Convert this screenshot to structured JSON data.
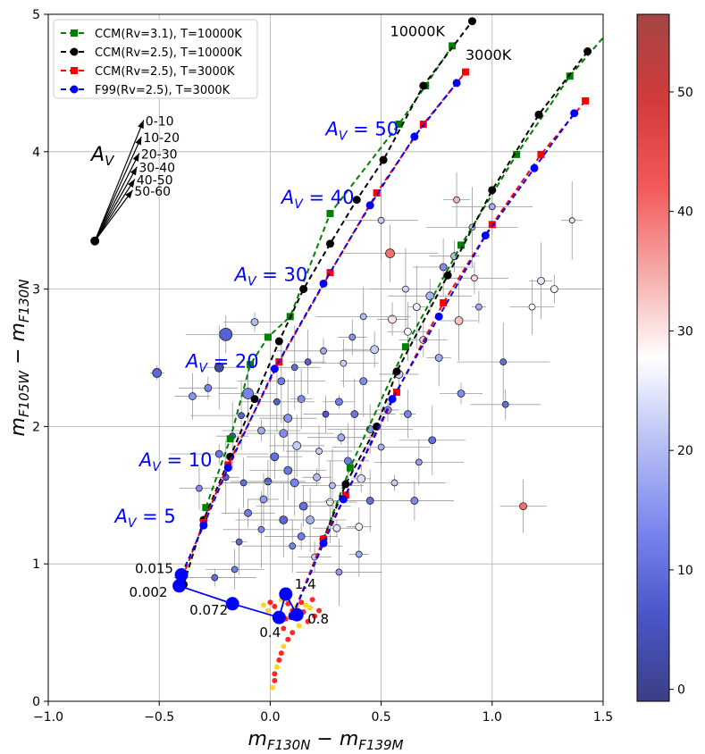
{
  "chart_data": {
    "type": "scatter",
    "title": "",
    "xlabel": "m_F130N − m_F139M",
    "xlabel_parts": {
      "base_x": "m",
      "sub_x": "F130N",
      "sep": " − ",
      "base_x2": "m",
      "sub_x2": "F139M"
    },
    "ylabel_parts": {
      "base_y": "m",
      "sub_y": "F105W",
      "sep": " − ",
      "base_y2": "m",
      "sub_y2": "F130N"
    },
    "xlim": [
      -1.0,
      1.5
    ],
    "ylim": [
      0,
      5
    ],
    "x_ticks": [
      -1.0,
      -0.5,
      0.0,
      0.5,
      1.0,
      1.5
    ],
    "x_tick_labels": [
      "−1.0",
      "−0.5",
      "0.0",
      "0.5",
      "1.0",
      "1.5"
    ],
    "y_ticks": [
      0,
      1,
      2,
      3,
      4,
      5
    ],
    "y_tick_labels": [
      "0",
      "1",
      "2",
      "3",
      "4",
      "5"
    ],
    "grid": true,
    "legend_position": "top-left",
    "colorbar": {
      "range": [
        -1,
        56.5
      ],
      "ticks": [
        0,
        10,
        20,
        30,
        40,
        50
      ],
      "tick_labels": [
        "0",
        "10",
        "20",
        "30",
        "40",
        "50"
      ],
      "colors": [
        "#3b3f85",
        "#4a55c8",
        "#7a86ee",
        "#b7bff4",
        "#ffffff",
        "#f5a9a9",
        "#f25858",
        "#d23b3b",
        "#a44545"
      ]
    },
    "series": [
      {
        "name": "CCM(Rv=3.1), T=10000K",
        "color": "#008000",
        "marker": "square",
        "left_branch": [
          [
            -0.29,
            1.41
          ],
          [
            -0.18,
            1.91
          ],
          [
            -0.09,
            2.45
          ],
          [
            -0.01,
            2.65
          ],
          [
            0.09,
            2.8
          ],
          [
            0.27,
            3.55
          ],
          [
            0.58,
            4.2
          ],
          [
            0.7,
            4.48
          ],
          [
            0.82,
            4.77
          ]
        ],
        "right_branch": [
          [
            0.24,
            1.18
          ],
          [
            0.36,
            1.7
          ],
          [
            0.61,
            2.58
          ],
          [
            0.86,
            3.32
          ],
          [
            1.11,
            3.98
          ],
          [
            1.35,
            4.55
          ]
        ],
        "extension": [
          [
            1.35,
            4.55
          ],
          [
            1.5,
            4.83
          ]
        ]
      },
      {
        "name": "CCM(Rv=2.5), T=10000K",
        "color": "#000000",
        "marker": "circle",
        "left_branch": [
          [
            -0.39,
            0.85
          ],
          [
            -0.3,
            1.32
          ],
          [
            -0.18,
            1.78
          ],
          [
            -0.07,
            2.2
          ],
          [
            0.04,
            2.62
          ],
          [
            0.15,
            3.0
          ],
          [
            0.27,
            3.33
          ],
          [
            0.39,
            3.65
          ],
          [
            0.51,
            3.94
          ],
          [
            0.69,
            4.48
          ],
          [
            0.91,
            4.95
          ]
        ],
        "right_branch": [
          [
            0.1,
            0.62
          ],
          [
            0.24,
            1.18
          ],
          [
            0.34,
            1.58
          ],
          [
            0.48,
            2.0
          ],
          [
            0.57,
            2.4
          ],
          [
            0.8,
            3.1
          ],
          [
            1.0,
            3.72
          ],
          [
            1.21,
            4.27
          ],
          [
            1.43,
            4.73
          ]
        ]
      },
      {
        "name": "CCM(Rv=2.5), T=3000K",
        "color": "#ff0000",
        "marker": "square",
        "left_branch": [
          [
            -0.41,
            0.84
          ],
          [
            -0.3,
            1.3
          ],
          [
            -0.19,
            1.72
          ],
          [
            0.04,
            2.47
          ],
          [
            0.27,
            3.12
          ],
          [
            0.48,
            3.7
          ],
          [
            0.69,
            4.2
          ],
          [
            0.88,
            4.58
          ]
        ],
        "right_branch": [
          [
            0.1,
            0.62
          ],
          [
            0.24,
            1.18
          ],
          [
            0.34,
            1.5
          ],
          [
            0.57,
            2.25
          ],
          [
            0.78,
            2.9
          ],
          [
            1.0,
            3.47
          ],
          [
            1.22,
            3.98
          ],
          [
            1.42,
            4.37
          ]
        ]
      },
      {
        "name": "F99(Rv=2.5), T=3000K",
        "color": "#0000ff",
        "marker": "circle",
        "left_branch": [
          [
            -0.4,
            0.92
          ],
          [
            -0.3,
            1.28
          ],
          [
            -0.19,
            1.7
          ],
          [
            0.02,
            2.42
          ],
          [
            0.24,
            3.04
          ],
          [
            0.45,
            3.61
          ],
          [
            0.65,
            4.11
          ],
          [
            0.84,
            4.5
          ]
        ],
        "right_branch": [
          [
            0.1,
            0.62
          ],
          [
            0.24,
            1.15
          ],
          [
            0.33,
            1.47
          ],
          [
            0.55,
            2.2
          ],
          [
            0.76,
            2.8
          ],
          [
            0.97,
            3.39
          ],
          [
            1.19,
            3.88
          ],
          [
            1.37,
            4.28
          ]
        ]
      }
    ],
    "isochrone": {
      "color": "#0000ff",
      "points": [
        [
          -0.4,
          0.92
        ],
        [
          -0.41,
          0.84
        ],
        [
          -0.17,
          0.71
        ],
        [
          0.04,
          0.61
        ],
        [
          0.07,
          0.78
        ],
        [
          0.12,
          0.63
        ]
      ],
      "labels": [
        "0.015",
        "0.002",
        "0.072",
        "0.4",
        "1.4",
        "0.8"
      ]
    },
    "reddening_vector": {
      "symbol": "A_V",
      "origin": [
        -0.79,
        3.35
      ],
      "label_position": "left",
      "arrows": [
        {
          "label": "0-10",
          "tip": [
            -0.57,
            4.23
          ]
        },
        {
          "label": "10-20",
          "tip": [
            -0.58,
            4.11
          ]
        },
        {
          "label": "20-30",
          "tip": [
            -0.59,
            3.99
          ]
        },
        {
          "label": "30-40",
          "tip": [
            -0.6,
            3.89
          ]
        },
        {
          "label": "40-50",
          "tip": [
            -0.61,
            3.8
          ]
        },
        {
          "label": "50-60",
          "tip": [
            -0.62,
            3.72
          ]
        }
      ]
    },
    "av_annotations": [
      {
        "prefix": "A",
        "sub": "V",
        "eq": " = 5",
        "x": -0.7,
        "y": 1.3
      },
      {
        "prefix": "A",
        "sub": "V",
        "eq": " = 10",
        "x": -0.59,
        "y": 1.71
      },
      {
        "prefix": "A",
        "sub": "V",
        "eq": " = 20",
        "x": -0.38,
        "y": 2.43
      },
      {
        "prefix": "A",
        "sub": "V",
        "eq": " = 30",
        "x": -0.16,
        "y": 3.06
      },
      {
        "prefix": "A",
        "sub": "V",
        "eq": " = 40",
        "x": 0.05,
        "y": 3.62
      },
      {
        "prefix": "A",
        "sub": "V",
        "eq": " = 50",
        "x": 0.25,
        "y": 4.12
      }
    ],
    "temperature_labels": [
      {
        "text": "10000K",
        "x": 0.54,
        "y": 4.84
      },
      {
        "text": "3000K",
        "x": 0.88,
        "y": 4.67
      }
    ],
    "sources": [
      [
        -0.51,
        2.39,
        9,
        10
      ],
      [
        -0.2,
        2.67,
        8,
        14
      ],
      [
        -0.1,
        2.24,
        13,
        12
      ],
      [
        -0.23,
        2.43,
        3,
        10
      ],
      [
        0.06,
        1.95,
        14,
        9
      ],
      [
        0.08,
        1.68,
        11,
        9
      ],
      [
        0.27,
        1.45,
        27,
        8
      ],
      [
        0.55,
        2.78,
        30,
        9
      ],
      [
        0.54,
        3.26,
        40,
        10
      ],
      [
        0.5,
        3.5,
        22,
        7
      ],
      [
        0.83,
        3.24,
        20,
        8
      ],
      [
        0.84,
        3.65,
        34,
        7
      ],
      [
        1.05,
        2.47,
        10,
        7
      ],
      [
        1.06,
        2.16,
        10,
        7
      ],
      [
        1.14,
        1.42,
        40,
        8
      ],
      [
        1.22,
        3.06,
        25,
        8
      ],
      [
        1.28,
        3.0,
        27,
        8
      ],
      [
        0.22,
        1.82,
        22,
        7
      ],
      [
        0.35,
        1.75,
        12,
        8
      ],
      [
        0.41,
        1.62,
        24,
        9
      ],
      [
        0.45,
        1.98,
        16,
        8
      ],
      [
        0.28,
        1.57,
        20,
        7
      ],
      [
        0.58,
        2.38,
        23,
        9
      ],
      [
        0.62,
        2.09,
        13,
        8
      ],
      [
        0.38,
        2.09,
        11,
        8
      ],
      [
        -0.28,
        2.28,
        13,
        8
      ],
      [
        -0.35,
        2.22,
        15,
        8
      ],
      [
        -0.13,
        2.08,
        8,
        7
      ],
      [
        -0.04,
        1.97,
        18,
        8
      ],
      [
        0.02,
        1.78,
        10,
        9
      ],
      [
        -0.17,
        1.93,
        6,
        7
      ],
      [
        -0.23,
        1.8,
        11,
        8
      ],
      [
        -0.01,
        1.6,
        8,
        8
      ],
      [
        0.11,
        1.59,
        13,
        9
      ],
      [
        0.21,
        1.63,
        20,
        8
      ],
      [
        0.15,
        1.42,
        10,
        9
      ],
      [
        0.18,
        1.32,
        19,
        9
      ],
      [
        0.3,
        1.26,
        25,
        8
      ],
      [
        0.4,
        1.27,
        26,
        8
      ],
      [
        0.45,
        1.46,
        10,
        8
      ],
      [
        0.32,
        1.92,
        18,
        8
      ],
      [
        0.25,
        2.09,
        7,
        7
      ],
      [
        0.14,
        2.2,
        14,
        8
      ],
      [
        0.05,
        2.33,
        12,
        8
      ],
      [
        0.47,
        2.56,
        22,
        9
      ],
      [
        0.62,
        2.69,
        28,
        8
      ],
      [
        0.66,
        2.87,
        26,
        8
      ],
      [
        0.72,
        2.95,
        19,
        9
      ],
      [
        0.78,
        3.16,
        14,
        8
      ],
      [
        0.85,
        2.77,
        33,
        9
      ],
      [
        0.94,
        2.87,
        18,
        7
      ],
      [
        1.0,
        3.6,
        18,
        7
      ],
      [
        0.08,
        2.06,
        15,
        9
      ],
      [
        0.2,
        1.05,
        22,
        7
      ],
      [
        0.1,
        1.13,
        13,
        7
      ],
      [
        -0.04,
        1.25,
        14,
        7
      ],
      [
        -0.1,
        1.37,
        12,
        8
      ],
      [
        -0.03,
        1.47,
        16,
        8
      ],
      [
        0.06,
        1.32,
        9,
        9
      ],
      [
        0.14,
        1.2,
        12,
        8
      ],
      [
        -0.12,
        1.59,
        10,
        7
      ],
      [
        -0.2,
        1.63,
        8,
        7
      ],
      [
        0.24,
        2.55,
        18,
        7
      ],
      [
        0.33,
        2.46,
        22,
        7
      ],
      [
        0.42,
        2.33,
        14,
        8
      ],
      [
        0.53,
        2.12,
        16,
        8
      ],
      [
        0.67,
        1.74,
        16,
        7
      ],
      [
        0.73,
        1.9,
        10,
        8
      ],
      [
        0.86,
        2.24,
        14,
        8
      ],
      [
        0.4,
        1.07,
        18,
        7
      ],
      [
        0.31,
        0.94,
        16,
        7
      ],
      [
        -0.07,
        2.76,
        20,
        8
      ],
      [
        -0.32,
        1.55,
        14,
        7
      ],
      [
        -0.14,
        1.16,
        9,
        7
      ],
      [
        -0.25,
        0.9,
        10,
        7
      ],
      [
        -0.16,
        0.96,
        12,
        7
      ],
      [
        0.17,
        2.47,
        8,
        7
      ],
      [
        0.56,
        1.59,
        22,
        7
      ],
      [
        0.65,
        1.46,
        14,
        8
      ],
      [
        0.12,
        1.86,
        22,
        9
      ],
      [
        0.31,
        2.18,
        12,
        8
      ],
      [
        0.5,
        1.85,
        18,
        7
      ],
      [
        0.03,
        2.18,
        8,
        7
      ],
      [
        0.11,
        2.43,
        10,
        7
      ],
      [
        0.37,
        2.65,
        15,
        7
      ],
      [
        0.42,
        2.8,
        20,
        7
      ],
      [
        0.61,
        3.0,
        23,
        7
      ],
      [
        0.69,
        2.63,
        24,
        8
      ],
      [
        0.76,
        2.5,
        18,
        8
      ],
      [
        0.91,
        3.45,
        20,
        7
      ],
      [
        0.92,
        3.08,
        31,
        7
      ],
      [
        1.18,
        2.87,
        28,
        7
      ],
      [
        1.36,
        3.5,
        30,
        6
      ]
    ],
    "pms_cloud": {
      "color": "#ff0000",
      "points": [
        [
          -0.03,
          0.7
        ],
        [
          0.0,
          0.72
        ],
        [
          0.02,
          0.69
        ],
        [
          0.05,
          0.74
        ],
        [
          0.08,
          0.71
        ],
        [
          0.1,
          0.66
        ],
        [
          0.12,
          0.69
        ],
        [
          0.14,
          0.72
        ],
        [
          0.15,
          0.65
        ],
        [
          0.18,
          0.68
        ],
        [
          0.2,
          0.62
        ],
        [
          0.17,
          0.58
        ],
        [
          0.13,
          0.55
        ],
        [
          0.1,
          0.5
        ],
        [
          0.08,
          0.45
        ],
        [
          0.06,
          0.4
        ],
        [
          0.05,
          0.35
        ],
        [
          0.04,
          0.3
        ],
        [
          0.03,
          0.25
        ],
        [
          0.02,
          0.2
        ],
        [
          0.02,
          0.15
        ],
        [
          0.01,
          0.1
        ],
        [
          0.03,
          0.63
        ],
        [
          0.07,
          0.6
        ],
        [
          -0.01,
          0.66
        ],
        [
          0.06,
          0.53
        ],
        [
          0.11,
          0.62
        ],
        [
          0.16,
          0.7
        ],
        [
          0.19,
          0.74
        ],
        [
          0.22,
          0.66
        ]
      ]
    }
  }
}
